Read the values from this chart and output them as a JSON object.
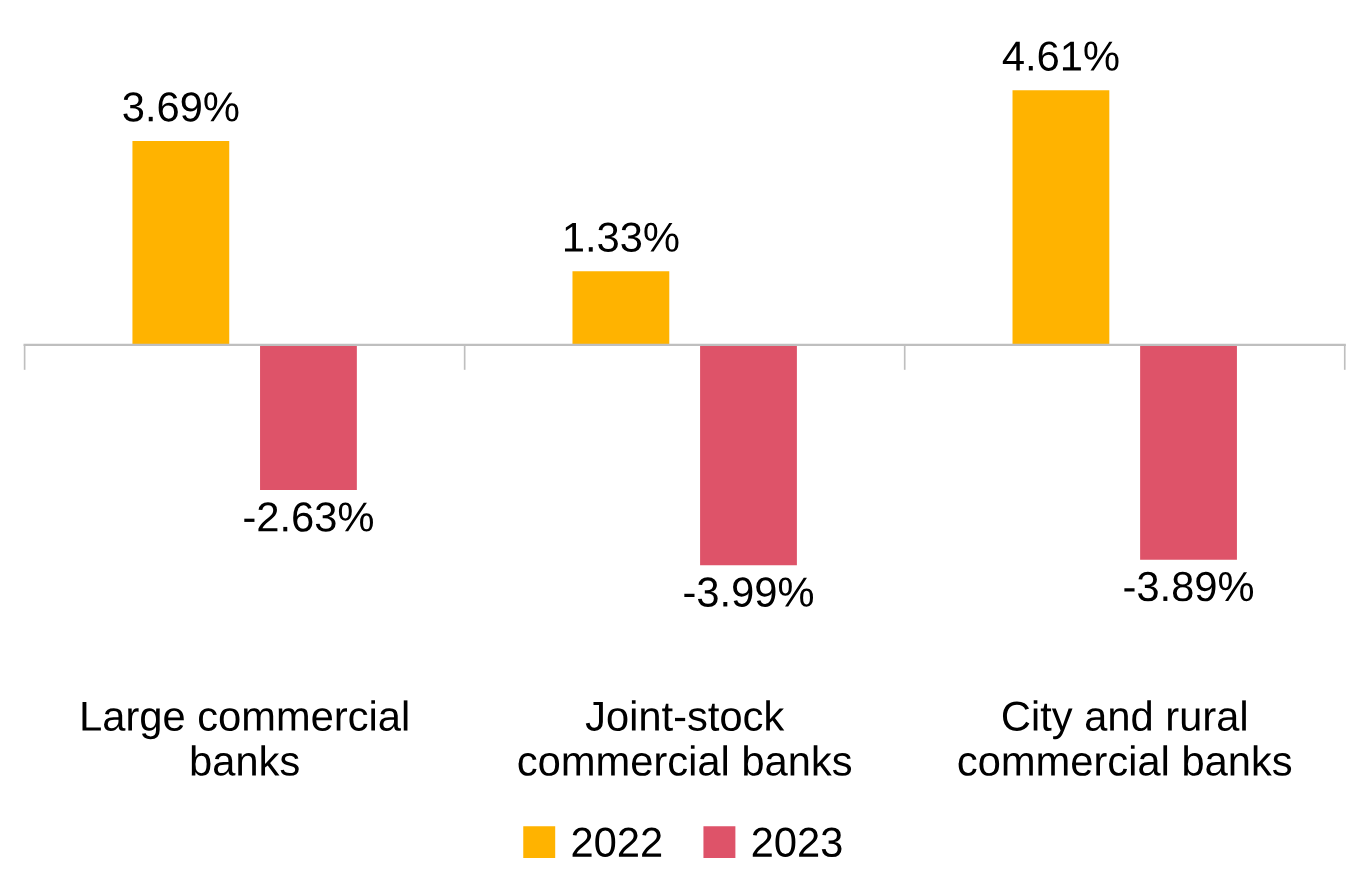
{
  "chart_data": {
    "type": "bar",
    "categories": [
      "Large commercial\nbanks",
      "Joint-stock\ncommercial banks",
      "City and rural\ncommercial banks"
    ],
    "series": [
      {
        "name": "2022",
        "color": "#ffb300",
        "values": [
          3.69,
          1.33,
          4.61
        ],
        "value_labels": [
          "3.69%",
          "1.33%",
          "4.61%"
        ]
      },
      {
        "name": "2023",
        "color": "#de5369",
        "values": [
          -2.63,
          -3.99,
          -3.89
        ],
        "value_labels": [
          "-2.63%",
          "-3.99%",
          "-3.89%"
        ]
      }
    ],
    "legend": "bottom",
    "grid": false
  }
}
